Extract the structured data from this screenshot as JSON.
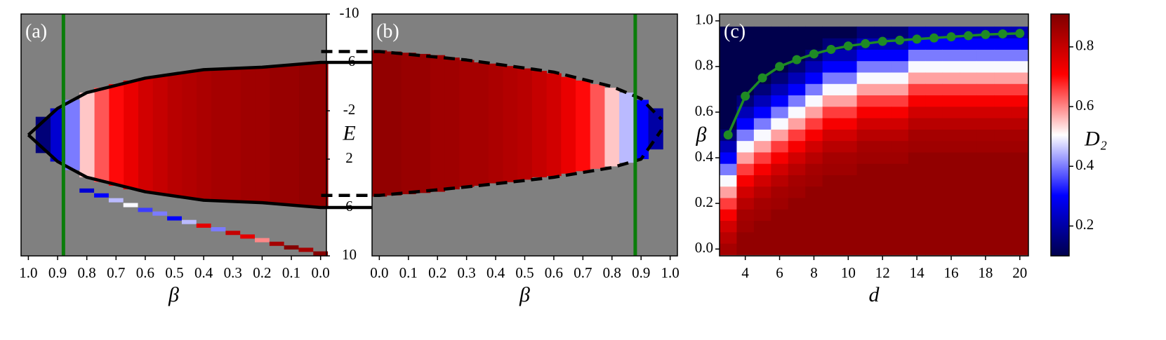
{
  "chart_data": [
    {
      "type": "heatmap",
      "label": "(a)",
      "xlabel": "β",
      "ylabel": "E",
      "xlim": [
        1.025,
        -0.02
      ],
      "xticks": [
        {
          "value": 1,
          "label": "1.0"
        },
        0.9,
        0.8,
        0.7,
        0.6,
        0.5,
        0.4,
        0.3,
        0.2,
        0.1,
        {
          "value": 0,
          "label": "0.0"
        }
      ],
      "ylim": [
        10,
        -10
      ],
      "yticks": [
        -10,
        -6,
        -2,
        2,
        6,
        10
      ],
      "background": "#808080",
      "x": [
        0,
        0.05,
        0.1,
        0.15,
        0.2,
        0.25,
        0.3,
        0.35,
        0.4,
        0.45,
        0.5,
        0.55,
        0.6,
        0.65,
        0.7,
        0.75,
        0.8,
        0.85,
        0.9,
        0.95
      ],
      "emin": [
        -6.0,
        -5.9,
        -5.8,
        -5.7,
        -5.6,
        -5.5,
        -5.5,
        -5.4,
        -5.3,
        -5.2,
        -5.1,
        -4.9,
        -4.7,
        -4.5,
        -4.2,
        -3.9,
        -3.5,
        -2.9,
        -2.2,
        -1.5
      ],
      "emax": [
        6.0,
        5.9,
        5.8,
        5.7,
        5.6,
        5.5,
        5.5,
        5.4,
        5.3,
        5.2,
        5.1,
        4.9,
        4.7,
        4.5,
        4.2,
        3.9,
        3.5,
        2.9,
        2.2,
        1.5
      ],
      "values": [
        0.88,
        0.88,
        0.87,
        0.87,
        0.86,
        0.86,
        0.85,
        0.85,
        0.84,
        0.83,
        0.82,
        0.8,
        0.78,
        0.74,
        0.7,
        0.64,
        0.55,
        0.4,
        0.25,
        0.15
      ],
      "trail": {
        "x": [
          0.8,
          0.75,
          0.7,
          0.65,
          0.6,
          0.55,
          0.5,
          0.45,
          0.4,
          0.35,
          0.3,
          0.25,
          0.2,
          0.15,
          0.1,
          0.05,
          0
        ],
        "y": [
          4.6,
          5.0,
          5.4,
          5.8,
          6.2,
          6.5,
          6.9,
          7.2,
          7.5,
          7.8,
          8.1,
          8.4,
          8.7,
          9.0,
          9.3,
          9.5,
          9.8
        ],
        "values": [
          0.25,
          0.3,
          0.45,
          0.5,
          0.35,
          0.4,
          0.3,
          0.45,
          0.75,
          0.4,
          0.8,
          0.75,
          0.6,
          0.85,
          0.9,
          0.85,
          0.9
        ]
      },
      "lines": [
        {
          "x": [
            -0.2,
            0,
            0.2,
            0.4,
            0.6,
            0.8,
            0.9,
            1.0
          ],
          "y": [
            -6,
            -6,
            -5.6,
            -5.4,
            -4.7,
            -3.5,
            -2.2,
            0
          ],
          "color": "#000000",
          "dash": false
        },
        {
          "x": [
            -0.2,
            0,
            0.2,
            0.4,
            0.6,
            0.8,
            0.9,
            1.0
          ],
          "y": [
            6,
            6,
            5.6,
            5.4,
            4.7,
            3.5,
            2.2,
            0
          ],
          "color": "#000000",
          "dash": false
        }
      ],
      "vline": 0.88,
      "vline_color": "#0a7d0a"
    },
    {
      "type": "heatmap",
      "label": "(b)",
      "xlabel": "β",
      "xlim": [
        -0.025,
        1.025
      ],
      "xticks": [
        {
          "value": 0,
          "label": "0.0"
        },
        0.1,
        0.2,
        0.3,
        0.4,
        0.5,
        0.6,
        0.7,
        0.8,
        0.9,
        {
          "value": 1,
          "label": "1.0"
        }
      ],
      "ylim": [
        10,
        -10
      ],
      "background": "#808080",
      "x": [
        0,
        0.05,
        0.1,
        0.15,
        0.2,
        0.25,
        0.3,
        0.35,
        0.4,
        0.45,
        0.5,
        0.55,
        0.6,
        0.65,
        0.7,
        0.75,
        0.8,
        0.85,
        0.9,
        0.95
      ],
      "emin": [
        -7.0,
        -6.9,
        -6.8,
        -6.7,
        -6.6,
        -6.4,
        -6.2,
        -6.0,
        -5.9,
        -5.7,
        -5.5,
        -5.3,
        -5.1,
        -4.8,
        -4.5,
        -4.2,
        -3.9,
        -3.5,
        -2.9,
        -2.2
      ],
      "emax": [
        5.1,
        5.0,
        4.9,
        4.8,
        4.7,
        4.5,
        4.3,
        4.2,
        4.0,
        3.9,
        3.7,
        3.5,
        3.4,
        3.2,
        3.0,
        2.8,
        2.6,
        2.3,
        2.0,
        1.2
      ],
      "values": [
        0.88,
        0.88,
        0.87,
        0.87,
        0.86,
        0.86,
        0.85,
        0.85,
        0.84,
        0.83,
        0.82,
        0.8,
        0.78,
        0.74,
        0.7,
        0.64,
        0.55,
        0.45,
        0.3,
        0.2
      ],
      "lines": [
        {
          "x": [
            -0.2,
            0,
            0.3,
            0.6,
            0.8,
            0.9,
            0.97
          ],
          "y": [
            -6.9,
            -6.9,
            -6.2,
            -5.2,
            -4.0,
            -3.0,
            -1.3
          ],
          "color": "#000000",
          "dash": true
        },
        {
          "x": [
            -0.2,
            0,
            0.3,
            0.6,
            0.8,
            0.9,
            0.97
          ],
          "y": [
            5.0,
            5.0,
            4.3,
            3.5,
            2.7,
            2.0,
            -0.4
          ],
          "color": "#000000",
          "dash": true
        }
      ],
      "vline": 0.88,
      "vline_color": "#0a7d0a"
    },
    {
      "type": "heatmap",
      "label": "(c)",
      "xlabel": "d",
      "ylabel": "β",
      "xlim": [
        2.5,
        20.5
      ],
      "xticks": [
        4,
        6,
        8,
        10,
        12,
        14,
        16,
        18,
        20
      ],
      "ylim": [
        -0.03,
        1.03
      ],
      "yticks": [
        {
          "value": 0,
          "label": "0.0"
        },
        0.2,
        0.4,
        0.6,
        0.8,
        {
          "value": 1,
          "label": "1.0"
        }
      ],
      "background": "#808080",
      "x": [
        3,
        4,
        5,
        6,
        7,
        8,
        9,
        10,
        11,
        12,
        13,
        14,
        15,
        16,
        17,
        18,
        19,
        20
      ],
      "y": [
        0,
        0.05,
        0.1,
        0.15,
        0.2,
        0.25,
        0.3,
        0.35,
        0.4,
        0.45,
        0.5,
        0.55,
        0.6,
        0.65,
        0.7,
        0.75,
        0.8,
        0.85,
        0.9,
        0.95
      ],
      "z": [
        [
          0.85,
          0.82,
          0.78,
          0.72,
          0.66,
          0.58,
          0.5,
          0.4,
          0.3,
          0.22,
          0.15,
          0.1,
          0.1,
          0.1,
          0.1,
          0.1,
          0.1,
          0.1,
          0.1,
          0.1
        ],
        [
          0.88,
          0.88,
          0.86,
          0.85,
          0.82,
          0.78,
          0.72,
          0.66,
          0.58,
          0.5,
          0.4,
          0.3,
          0.22,
          0.15,
          0.1,
          0.1,
          0.1,
          0.1,
          0.1,
          0.1
        ],
        [
          0.88,
          0.88,
          0.88,
          0.86,
          0.85,
          0.82,
          0.78,
          0.72,
          0.66,
          0.58,
          0.5,
          0.4,
          0.3,
          0.22,
          0.15,
          0.1,
          0.1,
          0.1,
          0.1,
          0.1
        ],
        [
          0.88,
          0.88,
          0.88,
          0.88,
          0.86,
          0.85,
          0.82,
          0.78,
          0.72,
          0.66,
          0.58,
          0.5,
          0.4,
          0.3,
          0.22,
          0.15,
          0.1,
          0.1,
          0.1,
          0.1
        ],
        [
          0.88,
          0.88,
          0.88,
          0.88,
          0.88,
          0.86,
          0.85,
          0.82,
          0.78,
          0.72,
          0.66,
          0.58,
          0.5,
          0.4,
          0.3,
          0.22,
          0.15,
          0.1,
          0.1,
          0.1
        ],
        [
          0.88,
          0.88,
          0.88,
          0.88,
          0.88,
          0.88,
          0.86,
          0.85,
          0.82,
          0.78,
          0.72,
          0.66,
          0.58,
          0.5,
          0.4,
          0.3,
          0.22,
          0.15,
          0.1,
          0.1
        ],
        [
          0.88,
          0.88,
          0.88,
          0.88,
          0.88,
          0.88,
          0.88,
          0.86,
          0.85,
          0.82,
          0.78,
          0.72,
          0.66,
          0.58,
          0.5,
          0.4,
          0.3,
          0.22,
          0.15,
          0.1
        ],
        [
          0.88,
          0.88,
          0.88,
          0.88,
          0.88,
          0.88,
          0.88,
          0.86,
          0.85,
          0.82,
          0.78,
          0.72,
          0.66,
          0.58,
          0.5,
          0.4,
          0.3,
          0.22,
          0.15,
          0.1
        ],
        [
          0.88,
          0.88,
          0.88,
          0.88,
          0.88,
          0.88,
          0.88,
          0.88,
          0.86,
          0.85,
          0.82,
          0.78,
          0.72,
          0.66,
          0.58,
          0.5,
          0.4,
          0.3,
          0.22,
          0.15
        ],
        [
          0.88,
          0.88,
          0.88,
          0.88,
          0.88,
          0.88,
          0.88,
          0.88,
          0.86,
          0.85,
          0.82,
          0.78,
          0.72,
          0.66,
          0.58,
          0.5,
          0.4,
          0.3,
          0.22,
          0.15
        ],
        [
          0.88,
          0.88,
          0.88,
          0.88,
          0.88,
          0.88,
          0.88,
          0.88,
          0.86,
          0.85,
          0.82,
          0.78,
          0.72,
          0.66,
          0.58,
          0.5,
          0.4,
          0.3,
          0.22,
          0.15
        ],
        [
          0.88,
          0.88,
          0.88,
          0.88,
          0.88,
          0.88,
          0.88,
          0.88,
          0.88,
          0.86,
          0.85,
          0.82,
          0.78,
          0.72,
          0.66,
          0.58,
          0.5,
          0.4,
          0.3,
          0.22
        ],
        [
          0.88,
          0.88,
          0.88,
          0.88,
          0.88,
          0.88,
          0.88,
          0.88,
          0.88,
          0.86,
          0.85,
          0.82,
          0.78,
          0.72,
          0.66,
          0.58,
          0.5,
          0.4,
          0.3,
          0.22
        ],
        [
          0.88,
          0.88,
          0.88,
          0.88,
          0.88,
          0.88,
          0.88,
          0.88,
          0.88,
          0.86,
          0.85,
          0.82,
          0.78,
          0.72,
          0.66,
          0.58,
          0.5,
          0.4,
          0.3,
          0.22
        ],
        [
          0.88,
          0.88,
          0.88,
          0.88,
          0.88,
          0.88,
          0.88,
          0.88,
          0.88,
          0.86,
          0.85,
          0.82,
          0.78,
          0.72,
          0.66,
          0.58,
          0.5,
          0.4,
          0.3,
          0.22
        ],
        [
          0.88,
          0.88,
          0.88,
          0.88,
          0.88,
          0.88,
          0.88,
          0.88,
          0.88,
          0.86,
          0.85,
          0.82,
          0.78,
          0.72,
          0.66,
          0.58,
          0.5,
          0.4,
          0.3,
          0.22
        ],
        [
          0.88,
          0.88,
          0.88,
          0.88,
          0.88,
          0.88,
          0.88,
          0.88,
          0.88,
          0.86,
          0.85,
          0.82,
          0.78,
          0.72,
          0.66,
          0.58,
          0.5,
          0.4,
          0.3,
          0.22
        ],
        [
          0.88,
          0.88,
          0.88,
          0.88,
          0.88,
          0.88,
          0.88,
          0.88,
          0.88,
          0.86,
          0.85,
          0.82,
          0.78,
          0.72,
          0.66,
          0.58,
          0.5,
          0.4,
          0.3,
          0.22
        ]
      ],
      "series": [
        {
          "color": "#1f8b24",
          "values": [
            0.5,
            0.67,
            0.75,
            0.8,
            0.83,
            0.855,
            0.875,
            0.89,
            0.9,
            0.91,
            0.915,
            0.92,
            0.925,
            0.93,
            0.935,
            0.94,
            0.943,
            0.945
          ]
        }
      ],
      "colormap": "seismic",
      "clim": [
        0.1,
        0.91
      ],
      "cticks": [
        0.2,
        0.4,
        0.6,
        0.8
      ],
      "clabel": "D₂"
    }
  ]
}
